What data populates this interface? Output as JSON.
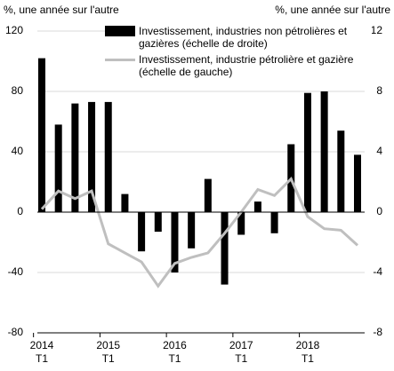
{
  "chart_data": {
    "type": "bar-line",
    "y_label": "%, une année sur l'autre",
    "y2_label": "%, une année sur l'autre",
    "categories": [
      "2014",
      null,
      null,
      null,
      "2015",
      null,
      null,
      null,
      "2016",
      null,
      null,
      null,
      "2017",
      null,
      null,
      null,
      "2018",
      null,
      null,
      null
    ],
    "sub_categories": [
      "T1",
      null,
      null,
      null,
      "T1",
      null,
      null,
      null,
      "T1",
      null,
      null,
      null,
      "T1",
      null,
      null,
      null,
      "T1",
      null,
      null,
      null
    ],
    "series": [
      {
        "name": "Investissement, industries non pétrolières et gazières (échelle de droite)",
        "type": "bar",
        "axis": "y2",
        "color": "#000000",
        "values": [
          10.2,
          5.8,
          7.2,
          7.3,
          7.3,
          1.2,
          -2.6,
          -1.3,
          -4.0,
          -2.4,
          2.2,
          -4.8,
          -1.5,
          0.7,
          -1.4,
          4.5,
          7.9,
          8.0,
          5.4,
          3.8
        ]
      },
      {
        "name": "Investissement, industrie pétrolière et gazière (échelle de gauche)",
        "type": "line",
        "axis": "y",
        "color": "#bfbfbf",
        "values": [
          2,
          14,
          9,
          14,
          -21,
          -27,
          -33,
          -49,
          -34,
          -30,
          -27,
          -14,
          0,
          15,
          11,
          22,
          -3,
          -11,
          -12,
          -22
        ]
      }
    ],
    "ylim": [
      -80,
      120
    ],
    "yticks": [
      -80,
      -40,
      0,
      40,
      80,
      120
    ],
    "y2lim": [
      -8,
      12
    ],
    "y2ticks": [
      -8,
      -4,
      0,
      4,
      8,
      12
    ],
    "grid": true
  }
}
